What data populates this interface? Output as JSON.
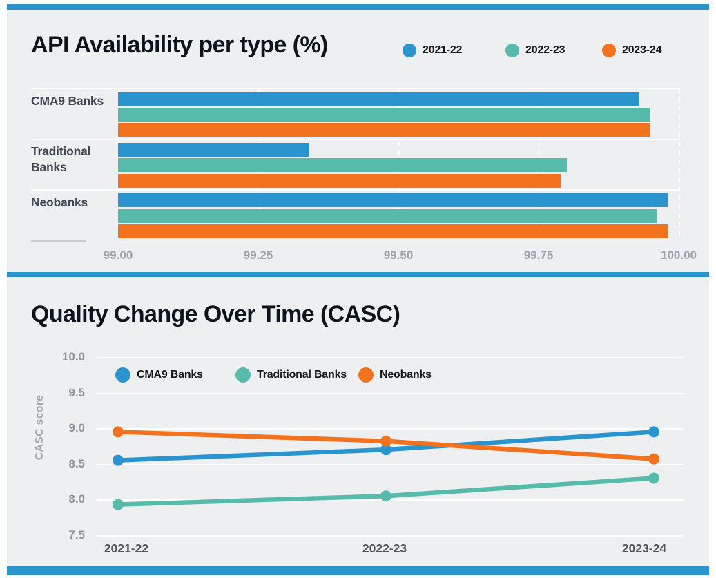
{
  "page": {
    "background": "#ffffff",
    "panel_background": "#edeff1",
    "accent_color": "#2a94cf"
  },
  "chart_data": [
    {
      "type": "bar",
      "orientation": "horizontal",
      "title": "API Availability per type (%)",
      "categories": [
        "CMA9 Banks",
        "Traditional Banks",
        "Neobanks"
      ],
      "series": [
        {
          "name": "2021-22",
          "color": "#2a94cf",
          "values": [
            99.93,
            99.34,
            99.98
          ]
        },
        {
          "name": "2022-23",
          "color": "#57bbab",
          "values": [
            99.95,
            99.8,
            99.96
          ]
        },
        {
          "name": "2023-24",
          "color": "#f2721d",
          "values": [
            99.95,
            99.79,
            99.98
          ]
        }
      ],
      "xlim": [
        99.0,
        100.0
      ],
      "x_ticks": [
        "99.00",
        "99.25",
        "99.50",
        "99.75",
        "100.00"
      ],
      "grid": "vertical white dashed gridlines, white row separators",
      "legend_position": "top-right"
    },
    {
      "type": "line",
      "title": "Quality Change Over Time (CASC)",
      "categories": [
        "2021-22",
        "2022-23",
        "2023-24"
      ],
      "series": [
        {
          "name": "CMA9 Banks",
          "color": "#2a94cf",
          "values": [
            8.55,
            8.7,
            8.95
          ]
        },
        {
          "name": "Traditional Banks",
          "color": "#57bbab",
          "values": [
            7.93,
            8.05,
            8.3
          ]
        },
        {
          "name": "Neobanks",
          "color": "#f2721d",
          "values": [
            8.95,
            8.82,
            8.57
          ]
        }
      ],
      "ylabel": "CASC score",
      "ylim": [
        7.5,
        10.0
      ],
      "y_ticks": [
        "10.0",
        "9.5",
        "9.0",
        "8.5",
        "8.0",
        "7.5"
      ],
      "grid": "horizontal white gridlines",
      "legend_position": "top-left inside plot"
    }
  ]
}
